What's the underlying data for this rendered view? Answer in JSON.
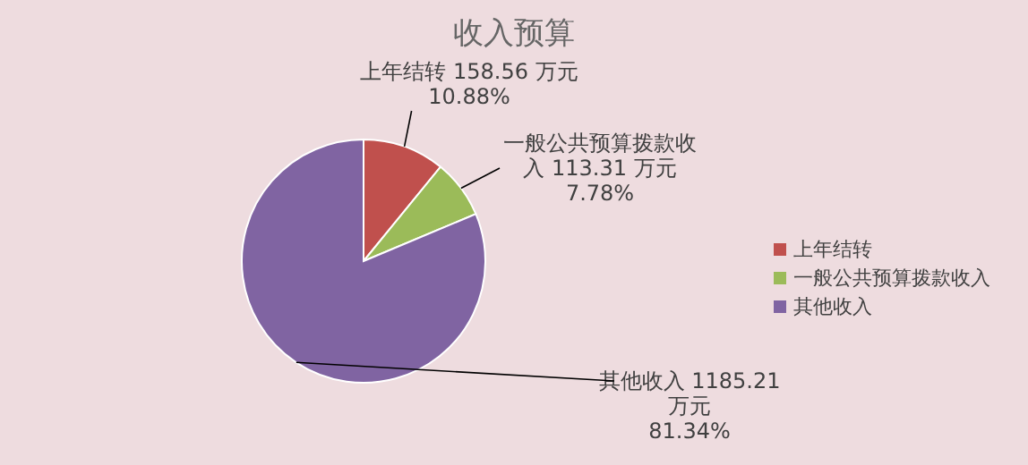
{
  "chart_data": {
    "type": "pie",
    "title": "收入预算",
    "categories": [
      "上年结转",
      "一般公共预算拨款收入",
      "其他收入"
    ],
    "values": [
      158.56,
      113.31,
      1185.21
    ],
    "value_labels": [
      "158.56 万元 10.88%",
      "113.31 万元 7.78%",
      "1185.21 万元 81.34%"
    ],
    "colors": [
      "#c0504d",
      "#9bbb59",
      "#8064a2"
    ],
    "legend": "right"
  }
}
